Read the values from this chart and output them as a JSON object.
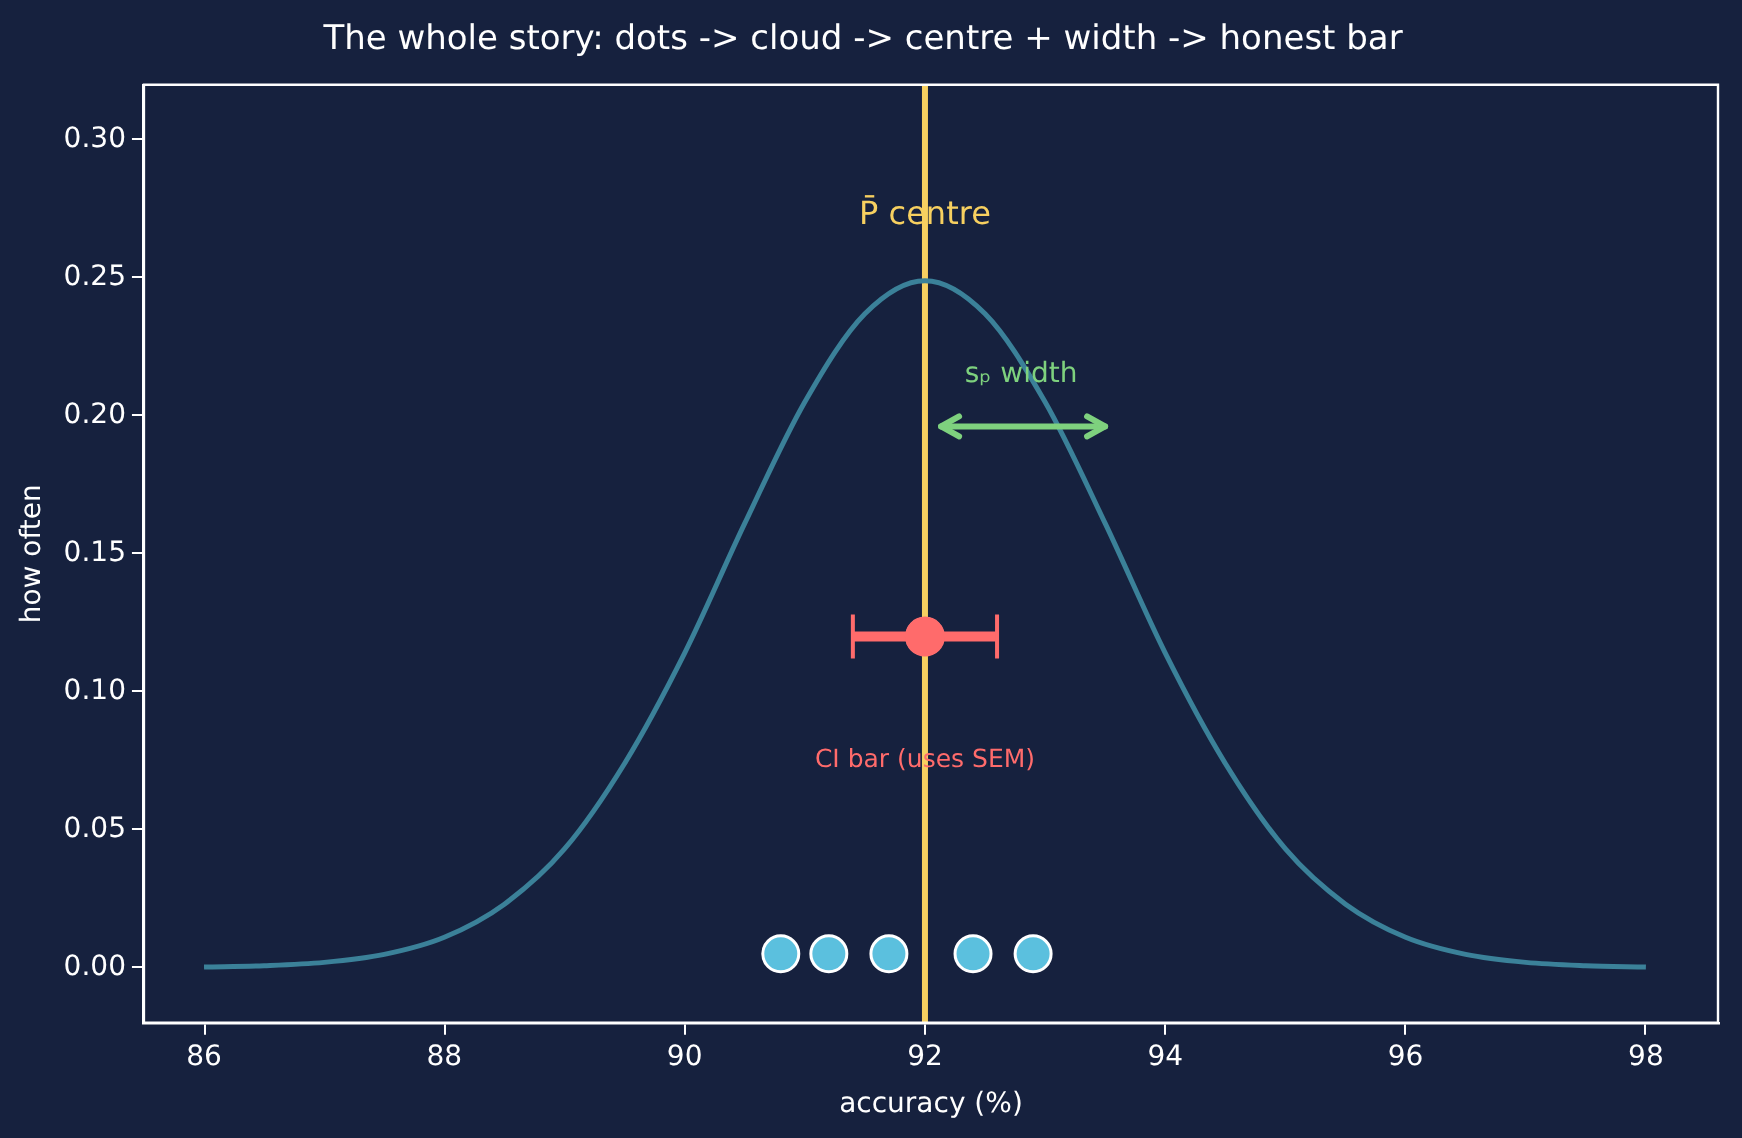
{
  "chart_data": {
    "type": "line",
    "title": "The whole story: dots -> cloud -> centre + width -> honest bar",
    "xlabel": "accuracy (%)",
    "ylabel": "how often",
    "series": [
      {
        "type": "line",
        "color": "#3b8199",
        "x": [
          86,
          86.5,
          87,
          87.5,
          88,
          88.5,
          89,
          89.5,
          90,
          90.5,
          91,
          91.5,
          92,
          92.5,
          93,
          93.5,
          94,
          94.5,
          95,
          95.5,
          96,
          96.5,
          97,
          97.5,
          98
        ],
        "values": [
          0.0002,
          0.0007,
          0.0019,
          0.0048,
          0.011,
          0.023,
          0.043,
          0.074,
          0.114,
          0.161,
          0.205,
          0.237,
          0.249,
          0.237,
          0.205,
          0.161,
          0.114,
          0.074,
          0.043,
          0.023,
          0.011,
          0.0048,
          0.0019,
          0.0007,
          0.0002
        ]
      },
      {
        "type": "scatter",
        "color": "#5bc0de",
        "marker": "circle",
        "x": [
          90.8,
          91.2,
          91.7,
          92.4,
          92.9
        ],
        "values": [
          0.005,
          0.005,
          0.005,
          0.005,
          0.005
        ]
      },
      {
        "type": "scatter",
        "color": "#ff6b6b",
        "marker": "circle",
        "x": [
          92
        ],
        "values": [
          0.12
        ],
        "xerrors": [
          0.6
        ]
      }
    ],
    "ref_lines": [
      {
        "axis": "x",
        "value": 92,
        "label": "P̄ centre",
        "color": "#f7d060"
      }
    ],
    "annotations": [
      {
        "text": "sₚ width",
        "x": 92.8,
        "y": 0.215
      },
      {
        "text": "CI bar (uses SEM)",
        "x": 92,
        "y": 0.075
      }
    ],
    "xlim": [
      85.5,
      98.6
    ],
    "ylim": [
      -0.02,
      0.32
    ],
    "xticks": [
      86,
      88,
      90,
      92,
      94,
      96,
      98
    ],
    "yticks": [
      {
        "value": 0,
        "label": "0.00"
      },
      {
        "value": 0.05,
        "label": "0.05"
      },
      {
        "value": 0.1,
        "label": "0.10"
      },
      {
        "value": 0.15,
        "label": "0.15"
      },
      {
        "value": 0.2,
        "label": "0.20"
      },
      {
        "value": 0.25,
        "label": "0.25"
      },
      {
        "value": 0.3,
        "label": "0.30"
      }
    ],
    "grid": false,
    "legend": false
  }
}
